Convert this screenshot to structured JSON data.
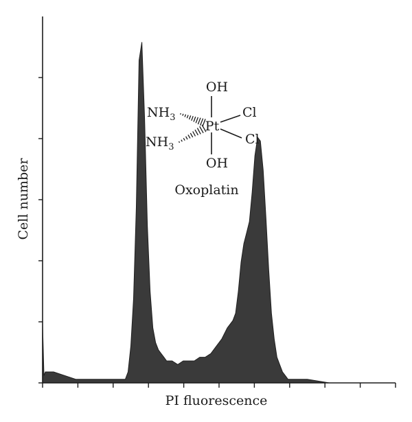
{
  "chart_data": {
    "type": "area",
    "title": "",
    "xlabel": "PI fluorescence",
    "ylabel": "Cell number",
    "x_tick_count": 11,
    "y_tick_count": 6,
    "xlim": [
      0,
      1024
    ],
    "ylim": [
      0,
      1.0
    ],
    "tick_labels": false,
    "fill_color": "#3a3a3a",
    "series": [
      {
        "x": [
          0,
          4,
          8,
          16,
          32,
          64,
          96,
          128,
          160,
          192,
          224,
          240,
          248,
          256,
          264,
          272,
          280,
          288,
          296,
          304,
          312,
          320,
          328,
          336,
          344,
          352,
          360,
          376,
          392,
          408,
          424,
          440,
          456,
          472,
          488,
          504,
          520,
          536,
          552,
          560,
          568,
          576,
          584,
          592,
          600,
          608,
          616,
          624,
          632,
          640,
          648,
          656,
          664,
          672,
          680,
          688,
          696,
          704,
          712,
          720,
          736,
          768,
          832,
          896,
          960,
          1024
        ],
        "values": [
          0.16,
          0.02,
          0.03,
          0.03,
          0.03,
          0.02,
          0.01,
          0.01,
          0.01,
          0.01,
          0.01,
          0.01,
          0.03,
          0.1,
          0.23,
          0.48,
          0.88,
          0.93,
          0.72,
          0.43,
          0.25,
          0.15,
          0.11,
          0.09,
          0.08,
          0.07,
          0.06,
          0.06,
          0.05,
          0.06,
          0.06,
          0.06,
          0.07,
          0.07,
          0.08,
          0.1,
          0.12,
          0.15,
          0.17,
          0.19,
          0.25,
          0.33,
          0.38,
          0.41,
          0.44,
          0.52,
          0.62,
          0.67,
          0.66,
          0.58,
          0.45,
          0.31,
          0.19,
          0.12,
          0.07,
          0.05,
          0.03,
          0.02,
          0.01,
          0.01,
          0.01,
          0.01,
          0.0,
          0.0,
          0.0,
          0.0
        ]
      }
    ],
    "annotations": [
      {
        "text": "Oxoplatin"
      }
    ]
  },
  "structure": {
    "oh_top": "OH",
    "oh_bottom": "OH",
    "nh3_1": "NH",
    "nh3_2": "NH",
    "sub3": "3",
    "pt": "Pt",
    "cl_1": "Cl",
    "cl_2": "Cl"
  }
}
